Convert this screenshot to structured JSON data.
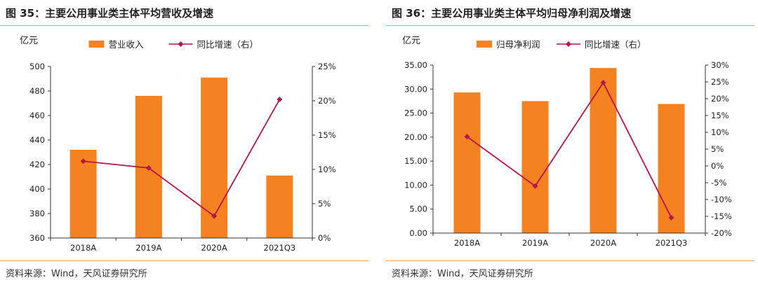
{
  "colors": {
    "bar": "#f58220",
    "line": "#b5154b",
    "rule": "#e8a25a",
    "axis": "#333333"
  },
  "chart_data": [
    {
      "type": "bar",
      "title": "图 35：主要公用事业类主体平均营收及增速",
      "unit_label": "亿元",
      "source": "资料来源：Wind，天风证券研究所",
      "categories": [
        "2018A",
        "2019A",
        "2020A",
        "2021Q3"
      ],
      "series": [
        {
          "name": "营业收入",
          "type": "bar",
          "axis": "left",
          "values": [
            432,
            476,
            491,
            411
          ]
        },
        {
          "name": "同比增速（右）",
          "type": "line",
          "axis": "right",
          "values": [
            11.2,
            10.2,
            3.2,
            20.2
          ]
        }
      ],
      "ylim_left": [
        360,
        500
      ],
      "yticks_left": [
        "360",
        "380",
        "400",
        "420",
        "440",
        "460",
        "480",
        "500"
      ],
      "ylim_right": [
        0,
        25
      ],
      "yticks_right": [
        "0%",
        "5%",
        "10%",
        "15%",
        "20%",
        "25%"
      ],
      "legend": "top-center",
      "grid": false
    },
    {
      "type": "bar",
      "title": "图 36：主要公用事业类主体平均归母净利润及增速",
      "unit_label": "亿元",
      "source": "资料来源：Wind，天风证券研究所",
      "categories": [
        "2018A",
        "2019A",
        "2020A",
        "2021Q3"
      ],
      "series": [
        {
          "name": "归母净利润",
          "type": "bar",
          "axis": "left",
          "values": [
            29.3,
            27.5,
            34.4,
            26.9
          ]
        },
        {
          "name": "同比增速（右）",
          "type": "line",
          "axis": "right",
          "values": [
            8.7,
            -6.0,
            24.8,
            -15.4
          ]
        }
      ],
      "ylim_left": [
        0,
        35
      ],
      "yticks_left": [
        "0.00",
        "5.00",
        "10.00",
        "15.00",
        "20.00",
        "25.00",
        "30.00",
        "35.00"
      ],
      "ylim_right": [
        -20,
        30
      ],
      "yticks_right": [
        "-20%",
        "-15%",
        "-10%",
        "-5%",
        "0%",
        "5%",
        "10%",
        "15%",
        "20%",
        "25%",
        "30%"
      ],
      "legend": "top-center",
      "grid": false
    }
  ]
}
